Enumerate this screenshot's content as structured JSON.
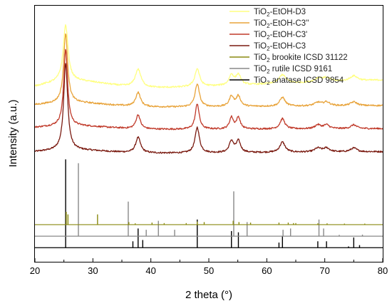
{
  "chart_data": {
    "type": "line",
    "xlabel": "2 theta (°)",
    "ylabel": "Intensity (a.u.)",
    "xlim": [
      20,
      80
    ],
    "xticks": [
      20,
      30,
      40,
      50,
      60,
      70,
      80
    ],
    "xtick_labels": [
      "20",
      "30",
      "40",
      "50",
      "60",
      "70",
      "80"
    ],
    "y_ticks": "none",
    "grid": false,
    "legend_position": "top-right",
    "legend": [
      {
        "series": "d3",
        "prefix": "TiO",
        "sub": "2",
        "suffix": "-EtOH-D3",
        "color": "#FFFF80"
      },
      {
        "series": "c3pp",
        "prefix": "TiO",
        "sub": "2",
        "suffix": "-EtOH-C3''",
        "color": "#E8A33A"
      },
      {
        "series": "c3p",
        "prefix": "TiO",
        "sub": "2",
        "suffix": "-EtOH-C3'",
        "color": "#C03A2A"
      },
      {
        "series": "c3",
        "prefix": "TiO",
        "sub": "2",
        "suffix": "-EtOH-C3",
        "color": "#7A1A10"
      },
      {
        "series": "brookite",
        "prefix": "TiO",
        "sub": "2",
        "suffix": " brookite ICSD 31122",
        "color": "#8A8A10"
      },
      {
        "series": "rutile",
        "prefix": "TiO",
        "sub": "2",
        "suffix": " rutile ICSD 9161",
        "color": "#888888"
      },
      {
        "series": "anatase",
        "prefix": "TiO",
        "sub": "2",
        "suffix": " anatase ICSD 9854",
        "color": "#000000"
      }
    ],
    "series": [
      {
        "id": "d3",
        "kind": "pattern",
        "color": "#FFFF80",
        "baseline": 0.66,
        "baseline_end": 0.71,
        "hump_center": 26,
        "hump_height": 0.04,
        "hump_width": 9,
        "peaks": [
          [
            25.3,
            0.22,
            0.5
          ],
          [
            37.8,
            0.07,
            0.6
          ],
          [
            48.0,
            0.07,
            0.5
          ],
          [
            53.9,
            0.04,
            0.5
          ],
          [
            55.1,
            0.04,
            0.5
          ],
          [
            62.7,
            0.035,
            0.7
          ],
          [
            68.9,
            0.015,
            0.8
          ],
          [
            70.3,
            0.015,
            0.8
          ],
          [
            75.0,
            0.02,
            0.8
          ]
        ]
      },
      {
        "id": "c3pp",
        "kind": "pattern",
        "color": "#E8A33A",
        "baseline": 0.6,
        "baseline_end": 0.61,
        "hump_center": 26,
        "hump_height": 0.02,
        "hump_width": 9,
        "peaks": [
          [
            25.3,
            0.27,
            0.42
          ],
          [
            37.8,
            0.055,
            0.5
          ],
          [
            48.0,
            0.09,
            0.45
          ],
          [
            53.9,
            0.04,
            0.45
          ],
          [
            55.1,
            0.04,
            0.45
          ],
          [
            62.7,
            0.035,
            0.55
          ],
          [
            68.8,
            0.013,
            0.7
          ],
          [
            70.3,
            0.015,
            0.7
          ],
          [
            75.0,
            0.015,
            0.7
          ]
        ]
      },
      {
        "id": "c3p",
        "kind": "pattern",
        "color": "#C03A2A",
        "baseline": 0.515,
        "baseline_end": 0.52,
        "hump_center": 26,
        "hump_height": 0.015,
        "hump_width": 9,
        "peaks": [
          [
            25.3,
            0.3,
            0.4
          ],
          [
            37.8,
            0.055,
            0.45
          ],
          [
            48.0,
            0.1,
            0.4
          ],
          [
            53.9,
            0.045,
            0.4
          ],
          [
            55.1,
            0.045,
            0.4
          ],
          [
            62.7,
            0.04,
            0.5
          ],
          [
            68.8,
            0.015,
            0.6
          ],
          [
            70.3,
            0.015,
            0.6
          ],
          [
            75.0,
            0.015,
            0.6
          ]
        ]
      },
      {
        "id": "c3",
        "kind": "pattern",
        "color": "#7A1A10",
        "baseline": 0.42,
        "baseline_end": 0.43,
        "hump_center": 26,
        "hump_height": 0.015,
        "hump_width": 9,
        "peaks": [
          [
            25.3,
            0.34,
            0.42
          ],
          [
            37.8,
            0.06,
            0.5
          ],
          [
            48.0,
            0.1,
            0.45
          ],
          [
            53.9,
            0.045,
            0.45
          ],
          [
            55.1,
            0.045,
            0.45
          ],
          [
            62.7,
            0.04,
            0.55
          ],
          [
            68.8,
            0.015,
            0.65
          ],
          [
            70.3,
            0.015,
            0.65
          ],
          [
            75.0,
            0.015,
            0.65
          ]
        ]
      },
      {
        "id": "brookite",
        "kind": "sticks",
        "color": "#8A8A10",
        "baseline": 0.145,
        "sticks": [
          [
            25.4,
            0.05
          ],
          [
            25.7,
            0.04
          ],
          [
            30.8,
            0.04
          ],
          [
            36.2,
            0.01
          ],
          [
            37.3,
            0.005
          ],
          [
            40.2,
            0.008
          ],
          [
            42.3,
            0.006
          ],
          [
            46.1,
            0.006
          ],
          [
            48.0,
            0.012
          ],
          [
            49.2,
            0.01
          ],
          [
            54.2,
            0.015
          ],
          [
            55.2,
            0.01
          ],
          [
            57.2,
            0.008
          ],
          [
            62.1,
            0.008
          ],
          [
            63.7,
            0.008
          ],
          [
            64.6,
            0.006
          ],
          [
            65.0,
            0.006
          ],
          [
            68.8,
            0.005
          ],
          [
            70.4,
            0.005
          ],
          [
            73.4,
            0.004
          ],
          [
            76.9,
            0.004
          ]
        ]
      },
      {
        "id": "rutile",
        "kind": "sticks",
        "color": "#888888",
        "baseline": 0.1,
        "sticks": [
          [
            27.5,
            0.285
          ],
          [
            36.1,
            0.135
          ],
          [
            39.2,
            0.025
          ],
          [
            41.3,
            0.06
          ],
          [
            44.1,
            0.025
          ],
          [
            54.3,
            0.175
          ],
          [
            56.6,
            0.055
          ],
          [
            62.8,
            0.025
          ],
          [
            64.1,
            0.03
          ],
          [
            69.0,
            0.065
          ],
          [
            69.8,
            0.03
          ],
          [
            72.5,
            0.005
          ],
          [
            76.5,
            0.006
          ]
        ]
      },
      {
        "id": "anatase",
        "kind": "sticks",
        "color": "#000000",
        "baseline": 0.055,
        "sticks": [
          [
            25.3,
            0.345
          ],
          [
            36.9,
            0.025
          ],
          [
            37.8,
            0.075
          ],
          [
            38.6,
            0.03
          ],
          [
            48.0,
            0.11
          ],
          [
            53.9,
            0.065
          ],
          [
            55.1,
            0.06
          ],
          [
            62.1,
            0.02
          ],
          [
            62.7,
            0.045
          ],
          [
            68.8,
            0.025
          ],
          [
            70.3,
            0.025
          ],
          [
            74.1,
            0.005
          ],
          [
            75.0,
            0.04
          ],
          [
            76.0,
            0.01
          ]
        ]
      }
    ]
  }
}
